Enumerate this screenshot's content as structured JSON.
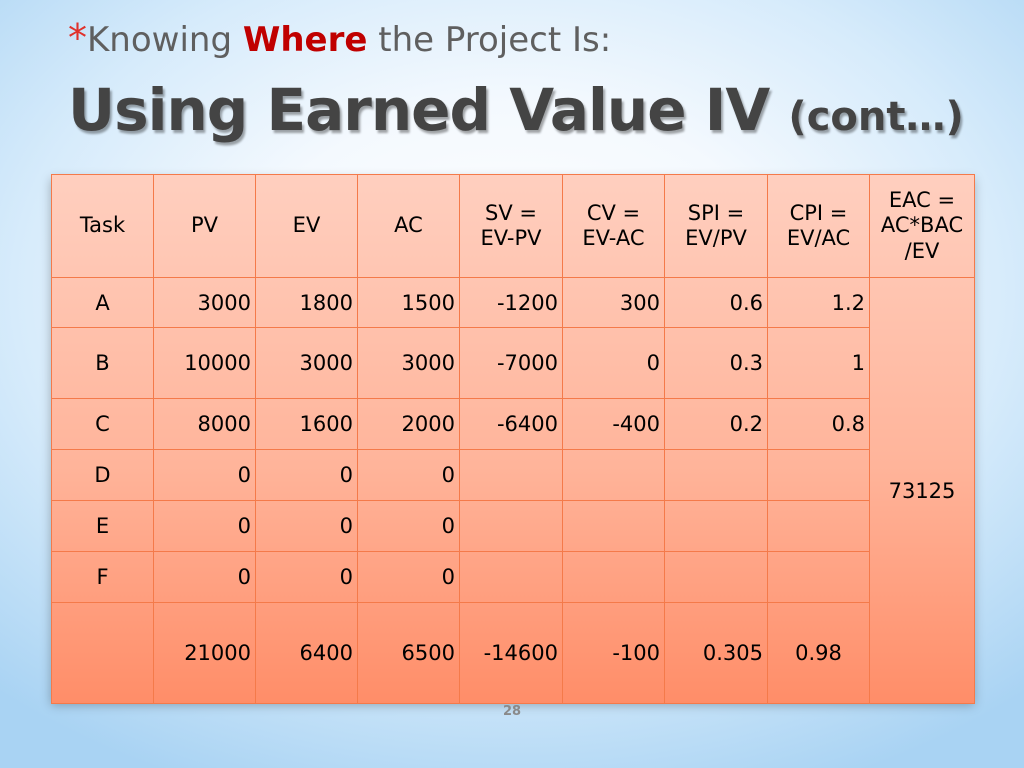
{
  "title": {
    "bullet": "*",
    "line1_pre": "Knowing ",
    "line1_highlight": "Where",
    "line1_post": " the Project Is:",
    "line2_main": "Using Earned Value IV ",
    "line2_sub": "(cont…)"
  },
  "table": {
    "headers": [
      "Task",
      "PV",
      "EV",
      "AC",
      "SV =\nEV-PV",
      "CV =\nEV-AC",
      "SPI =\nEV/PV",
      "CPI =\nEV/AC",
      "EAC =\nAC*BAC\n/EV"
    ],
    "rows": [
      [
        "A",
        "3000",
        "1800",
        "1500",
        "-1200",
        "300",
        "0.6",
        "1.2"
      ],
      [
        "B",
        "10000",
        "3000",
        "3000",
        "-7000",
        "0",
        "0.3",
        "1"
      ],
      [
        "C",
        "8000",
        "1600",
        "2000",
        "-6400",
        "-400",
        "0.2",
        "0.8"
      ],
      [
        "D",
        "0",
        "0",
        "0",
        "",
        "",
        "",
        ""
      ],
      [
        "E",
        "0",
        "0",
        "0",
        "",
        "",
        "",
        ""
      ],
      [
        "F",
        "0",
        "0",
        "0",
        "",
        "",
        "",
        ""
      ],
      [
        "",
        "21000",
        "6400",
        "6500",
        "-14600",
        "-100",
        "0.305",
        "0.98"
      ]
    ],
    "eac_value": "73125"
  },
  "page_number": "28",
  "colors": {
    "title_gray": "#5f5f5f",
    "highlight_red": "#c00000",
    "bullet_red": "#e0312b",
    "cell_top": "#ffcfbf",
    "cell_bottom": "#ff8d68",
    "cell_border": "#f47a4a"
  }
}
